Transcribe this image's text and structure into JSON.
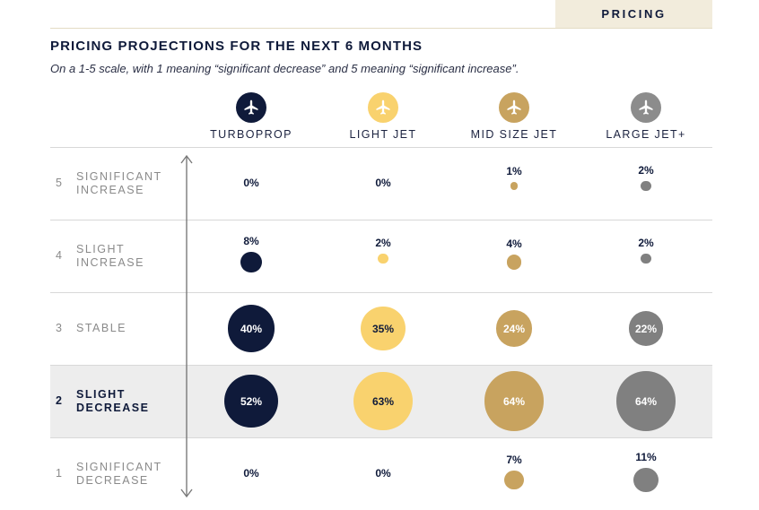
{
  "header": {
    "tab_label": "PRICING"
  },
  "title": "PRICING PROJECTIONS FOR THE NEXT 6 MONTHS",
  "subtitle": "On a 1-5 scale, with 1 meaning “significant decrease” and 5 meaning “significant increase”.",
  "icons": [
    {
      "name": "turboprop-plane-icon",
      "bg": "#0f1a3a",
      "fg": "#ffffff"
    },
    {
      "name": "light-jet-plane-icon",
      "bg": "#f9d26e",
      "fg": "#ffffff"
    },
    {
      "name": "mid-size-jet-plane-icon",
      "bg": "#c8a35f",
      "fg": "#ffffff"
    },
    {
      "name": "large-jet-plane-icon",
      "bg": "#8c8c8c",
      "fg": "#ffffff"
    }
  ],
  "chart_data": {
    "type": "bubble-matrix",
    "columns": [
      "TURBOPROP",
      "LIGHT JET",
      "MID SIZE JET",
      "LARGE JET+"
    ],
    "colors": [
      "#0f1a3a",
      "#f9d26e",
      "#c8a35f",
      "#808080"
    ],
    "rows": [
      {
        "num": "5",
        "label": "SIGNIFICANT\nINCREASE",
        "highlight": false,
        "values": [
          0,
          0,
          1,
          2
        ]
      },
      {
        "num": "4",
        "label": "SLIGHT\nINCREASE",
        "highlight": false,
        "values": [
          8,
          2,
          4,
          2
        ]
      },
      {
        "num": "3",
        "label": "STABLE",
        "highlight": false,
        "values": [
          40,
          35,
          24,
          22
        ]
      },
      {
        "num": "2",
        "label": "SLIGHT\nDECREASE",
        "highlight": true,
        "values": [
          52,
          63,
          64,
          64
        ]
      },
      {
        "num": "1",
        "label": "SIGNIFICANT\nDECREASE",
        "highlight": false,
        "values": [
          0,
          0,
          7,
          11
        ]
      }
    ],
    "value_suffix": "%"
  }
}
